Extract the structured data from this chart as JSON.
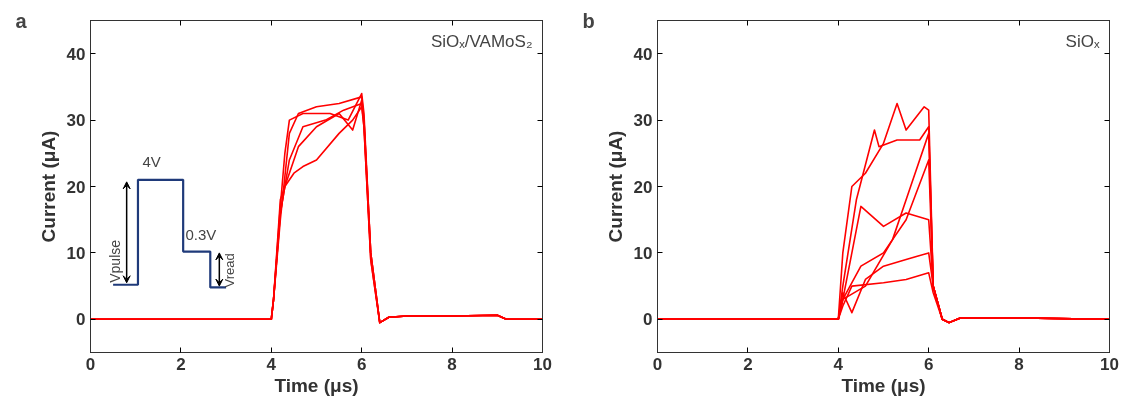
{
  "chart_data": [
    {
      "type": "line",
      "xlabel": "Time (μs)",
      "ylabel": "Current (μA)",
      "xlim": [
        0,
        10
      ],
      "ylim": [
        -5,
        45
      ],
      "xticks": [
        0,
        2,
        4,
        6,
        8,
        10
      ],
      "yticks": [
        0,
        10,
        20,
        30,
        40
      ],
      "annotations": [
        "a",
        "SiOₓ/VAMoS₂",
        "4V",
        "0.3V",
        "Vpulse",
        "Vread"
      ],
      "series": [
        {
          "color": "#ff0000",
          "x": [
            0,
            2,
            4,
            4.05,
            4.2,
            4.4,
            4.6,
            5,
            5.5,
            6,
            6.05,
            6.2,
            6.4,
            6.6,
            7,
            8,
            9,
            9.2,
            10
          ],
          "values": [
            0,
            0,
            0,
            3,
            15,
            28,
            31,
            32,
            32.5,
            33.5,
            30,
            10,
            -0.5,
            0.3,
            0.5,
            0.5,
            0.6,
            0,
            0
          ]
        },
        {
          "color": "#ff0000",
          "x": [
            0,
            2,
            4,
            4.05,
            4.2,
            4.3,
            4.5,
            4.7,
            5,
            5.5,
            5.8,
            6,
            6.05,
            6.2,
            6.4,
            6.6,
            7,
            8,
            9,
            9.2,
            10
          ],
          "values": [
            0,
            0,
            0,
            3,
            18,
            20,
            22,
            23,
            24,
            28,
            30,
            32,
            29,
            9,
            -0.5,
            0.3,
            0.5,
            0.5,
            0.6,
            0,
            0
          ]
        },
        {
          "color": "#ff0000",
          "x": [
            0,
            2,
            4,
            4.05,
            4.2,
            4.3,
            4.6,
            5,
            5.5,
            5.8,
            6,
            6.05,
            6.2,
            6.4,
            6.6,
            7,
            8,
            9,
            9.2,
            10
          ],
          "values": [
            0,
            0,
            0,
            3,
            16,
            20,
            26,
            29,
            31,
            28.5,
            33,
            30,
            10,
            -0.5,
            0.3,
            0.5,
            0.5,
            0.6,
            0,
            0
          ]
        },
        {
          "color": "#ff0000",
          "x": [
            0,
            2,
            4,
            4.05,
            4.2,
            4.3,
            4.4,
            4.7,
            5.3,
            5.7,
            6,
            6.05,
            6.2,
            6.4,
            6.6,
            7,
            8,
            9,
            9.2,
            10
          ],
          "values": [
            0,
            0,
            0,
            3,
            17,
            25,
            30,
            31,
            31,
            30,
            34,
            31,
            10,
            -0.5,
            0.3,
            0.5,
            0.5,
            0.6,
            0,
            0
          ]
        },
        {
          "color": "#ff0000",
          "x": [
            0,
            2,
            4,
            4.05,
            4.2,
            4.4,
            4.7,
            5.2,
            5.6,
            6,
            6.05,
            6.2,
            6.4,
            6.6,
            7,
            8,
            9,
            9.2,
            10
          ],
          "values": [
            0,
            0,
            0,
            3,
            16,
            24,
            29,
            30,
            31.5,
            32.5,
            29,
            9,
            -0.5,
            0.3,
            0.5,
            0.5,
            0.6,
            0,
            0
          ]
        }
      ]
    },
    {
      "type": "line",
      "xlabel": "Time (μs)",
      "ylabel": "Current (μA)",
      "xlim": [
        0,
        10
      ],
      "ylim": [
        -5,
        45
      ],
      "xticks": [
        0,
        2,
        4,
        6,
        8,
        10
      ],
      "yticks": [
        0,
        10,
        20,
        30,
        40
      ],
      "annotations": [
        "b",
        "SiOₓ"
      ],
      "series": [
        {
          "color": "#ff0000",
          "x": [
            0,
            2,
            4,
            4.1,
            4.3,
            4.6,
            5,
            5.3,
            5.5,
            5.9,
            6,
            6.1,
            6.3,
            6.45,
            6.7,
            8,
            10
          ],
          "values": [
            0,
            0,
            0,
            10,
            20,
            22,
            26.5,
            32.5,
            28.5,
            32,
            31.5,
            5,
            0,
            -0.5,
            0.2,
            0.2,
            0
          ]
        },
        {
          "color": "#ff0000",
          "x": [
            0,
            2,
            4,
            4.1,
            4.4,
            4.8,
            4.9,
            5.3,
            5.8,
            6,
            6.1,
            6.3,
            6.45,
            6.7,
            8,
            10
          ],
          "values": [
            0,
            0,
            0,
            5,
            18,
            28.5,
            26,
            27,
            27,
            29,
            5,
            0,
            -0.5,
            0.2,
            0.2,
            0
          ]
        },
        {
          "color": "#ff0000",
          "x": [
            0,
            2,
            4,
            4.1,
            4.5,
            5,
            5.5,
            6,
            6.1,
            6.3,
            6.45,
            6.7,
            8,
            10
          ],
          "values": [
            0,
            0,
            0,
            3,
            8,
            10,
            15,
            24,
            5,
            0,
            -0.5,
            0.2,
            0.2,
            0
          ]
        },
        {
          "color": "#ff0000",
          "x": [
            0,
            2,
            4,
            4.1,
            4.3,
            5,
            5.5,
            6,
            6.1,
            6.3,
            6.45,
            6.7,
            8,
            10
          ],
          "values": [
            0,
            0,
            0,
            2,
            5,
            5.5,
            6,
            7,
            4,
            0,
            -0.5,
            0.2,
            0.2,
            0
          ]
        },
        {
          "color": "#ff0000",
          "x": [
            0,
            2,
            4,
            4.1,
            4.5,
            5,
            5.5,
            6,
            6.1,
            6.3,
            6.45,
            6.7,
            8,
            10
          ],
          "values": [
            0,
            0,
            0,
            3,
            17,
            14,
            16,
            15,
            5,
            0,
            -0.5,
            0.2,
            0.2,
            0
          ]
        },
        {
          "color": "#ff0000",
          "x": [
            0,
            2,
            4,
            4.1,
            4.3,
            4.6,
            5,
            5.5,
            6,
            6.1,
            6.3,
            6.45,
            6.7,
            8,
            10
          ],
          "values": [
            0,
            0,
            0,
            4,
            1,
            6,
            8,
            9,
            10,
            5,
            0,
            -0.5,
            0.2,
            0.2,
            0
          ]
        },
        {
          "color": "#ff0000",
          "x": [
            0,
            2,
            4,
            4.1,
            4.6,
            5.2,
            5.6,
            6,
            6.1,
            6.3,
            6.45,
            6.7,
            8,
            10
          ],
          "values": [
            0,
            0,
            0,
            3,
            5,
            12,
            20,
            28,
            5,
            0,
            -0.5,
            0.2,
            0.2,
            0
          ]
        }
      ]
    }
  ]
}
